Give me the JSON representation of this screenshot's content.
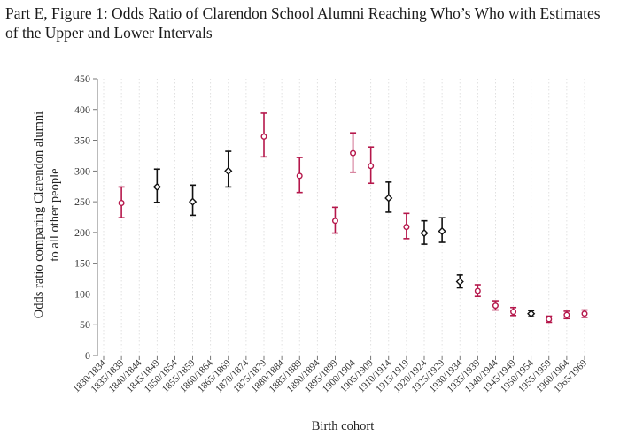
{
  "title": "Part E, Figure 1: Odds Ratio of Clarendon School Alumni Reaching Who’s Who with Estimates of the Upper and Lower Intervals",
  "chart_data": {
    "type": "errorbar",
    "title": "Part E, Figure 1: Odds Ratio of Clarendon School Alumni Reaching Who’s Who with Estimates of the Upper and Lower Intervals",
    "xlabel": "Birth cohort",
    "ylabel_line1": "Odds ratio comparing Clarendon alumni",
    "ylabel_line2": "to all other people",
    "ylim": [
      0,
      450
    ],
    "yticks": [
      0,
      50,
      100,
      150,
      200,
      250,
      300,
      350,
      400,
      450
    ],
    "ytick_labels": [
      "0",
      "50",
      "100",
      "150",
      "200",
      "250",
      "300",
      "350",
      "400",
      "450"
    ],
    "grid": true,
    "categories": [
      "1830/1834",
      "1835/1839",
      "1840/1844",
      "1845/1849",
      "1850/1854",
      "1855/1859",
      "1860/1864",
      "1865/1869",
      "1870/1874",
      "1875/1879",
      "1880/1884",
      "1885/1889",
      "1890/1894",
      "1895/1899",
      "1900/1904",
      "1905/1909",
      "1910/1914",
      "1915/1919",
      "1920/1924",
      "1925/1929",
      "1930/1934",
      "1935/1939",
      "1940/1944",
      "1945/1949",
      "1950/1954",
      "1955/1959",
      "1960/1964",
      "1965/1969"
    ],
    "colors": {
      "red": "#b5174b",
      "black": "#111111"
    },
    "points": [
      {
        "cohort": "1835/1839",
        "estimate": 248,
        "lower": 224,
        "upper": 274,
        "color": "red"
      },
      {
        "cohort": "1845/1849",
        "estimate": 274,
        "lower": 249,
        "upper": 303,
        "color": "black"
      },
      {
        "cohort": "1855/1859",
        "estimate": 250,
        "lower": 228,
        "upper": 277,
        "color": "black"
      },
      {
        "cohort": "1865/1869",
        "estimate": 300,
        "lower": 274,
        "upper": 332,
        "color": "black"
      },
      {
        "cohort": "1875/1879",
        "estimate": 356,
        "lower": 323,
        "upper": 394,
        "color": "red"
      },
      {
        "cohort": "1885/1889",
        "estimate": 292,
        "lower": 265,
        "upper": 322,
        "color": "red"
      },
      {
        "cohort": "1895/1899",
        "estimate": 219,
        "lower": 199,
        "upper": 241,
        "color": "red"
      },
      {
        "cohort": "1900/1904",
        "estimate": 329,
        "lower": 298,
        "upper": 362,
        "color": "red"
      },
      {
        "cohort": "1905/1909",
        "estimate": 308,
        "lower": 280,
        "upper": 339,
        "color": "red"
      },
      {
        "cohort": "1910/1914",
        "estimate": 256,
        "lower": 233,
        "upper": 282,
        "color": "black"
      },
      {
        "cohort": "1915/1919",
        "estimate": 209,
        "lower": 190,
        "upper": 231,
        "color": "red"
      },
      {
        "cohort": "1920/1924",
        "estimate": 199,
        "lower": 181,
        "upper": 219,
        "color": "black"
      },
      {
        "cohort": "1925/1929",
        "estimate": 202,
        "lower": 184,
        "upper": 224,
        "color": "black"
      },
      {
        "cohort": "1930/1934",
        "estimate": 120,
        "lower": 110,
        "upper": 131,
        "color": "black"
      },
      {
        "cohort": "1935/1939",
        "estimate": 105,
        "lower": 96,
        "upper": 115,
        "color": "red"
      },
      {
        "cohort": "1940/1944",
        "estimate": 81,
        "lower": 74,
        "upper": 89,
        "color": "red"
      },
      {
        "cohort": "1945/1949",
        "estimate": 71,
        "lower": 65,
        "upper": 78,
        "color": "red"
      },
      {
        "cohort": "1950/1954",
        "estimate": 68,
        "lower": 63,
        "upper": 73,
        "color": "black"
      },
      {
        "cohort": "1955/1959",
        "estimate": 59,
        "lower": 54,
        "upper": 64,
        "color": "red"
      },
      {
        "cohort": "1960/1964",
        "estimate": 66,
        "lower": 60,
        "upper": 72,
        "color": "red"
      },
      {
        "cohort": "1965/1969",
        "estimate": 68,
        "lower": 62,
        "upper": 74,
        "color": "red"
      }
    ]
  }
}
